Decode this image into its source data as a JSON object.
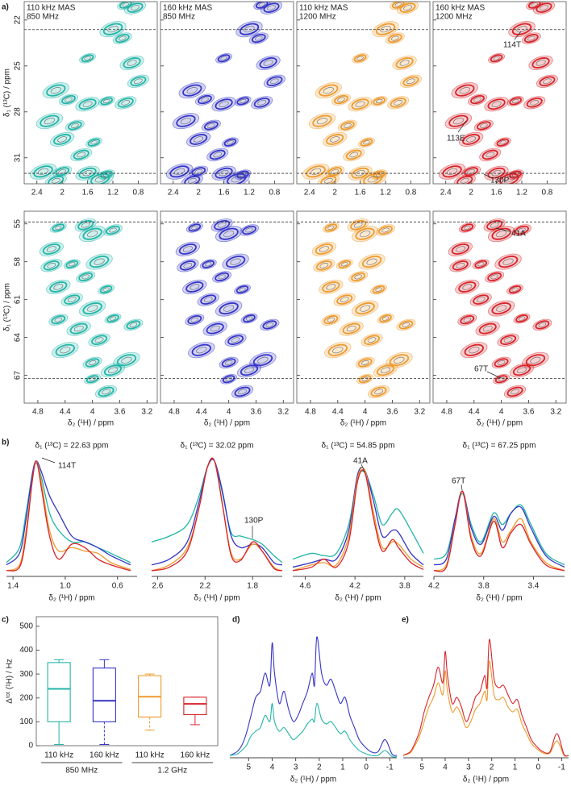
{
  "panel_labels": [
    "a)",
    "b)",
    "c)",
    "d)",
    "e)"
  ],
  "chart_data": [
    {
      "type": "contour",
      "panels": [
        {
          "label": [
            "110 kHz MAS",
            "850 MHz"
          ],
          "color": "#22b5a8"
        },
        {
          "label": [
            "160 kHz MAS",
            "850 MHz"
          ],
          "color": "#3535c8"
        },
        {
          "label": [
            "110 kHz MAS",
            "1200 MHz"
          ],
          "color": "#ee9a2e"
        },
        {
          "label": [
            "160 kHz MAS",
            "1200 MHz"
          ],
          "color": "#d8232a"
        }
      ],
      "xlim": [
        2.6,
        0.5
      ],
      "xticks": [
        2.4,
        2,
        1.6,
        1.2,
        0.8
      ],
      "ylim": [
        20.8,
        32.7
      ],
      "yticks": [
        22,
        25,
        28,
        31
      ],
      "ylabel": "δ₁ (¹³C) / ppm",
      "hlines": [
        22.63,
        32.02
      ],
      "peaks": {
        "x": [
          1.0,
          0.85,
          1.2,
          1.05,
          0.9,
          1.6,
          0.8,
          2.1,
          1.9,
          1.6,
          1.3,
          1.0,
          2.2,
          1.8,
          2.0,
          1.5,
          1.7,
          2.3,
          2.0,
          1.6,
          1.3,
          2.1,
          1.4
        ],
        "y": [
          21.0,
          21.2,
          22.6,
          23.2,
          24.8,
          24.5,
          26.0,
          26.6,
          27.2,
          27.5,
          27.3,
          27.4,
          28.6,
          28.9,
          29.8,
          30.0,
          30.8,
          31.9,
          31.9,
          32.0,
          32.1,
          32.5,
          32.4
        ]
      },
      "annotations": [
        "114T",
        "113E",
        "130P"
      ]
    },
    {
      "type": "contour",
      "panels": [
        {
          "color": "#22b5a8"
        },
        {
          "color": "#3535c8"
        },
        {
          "color": "#ee9a2e"
        },
        {
          "color": "#d8232a"
        }
      ],
      "xlim": [
        5.0,
        3.05
      ],
      "xticks": [
        4.8,
        4.4,
        4,
        3.6,
        3.2
      ],
      "ylim": [
        54.0,
        69.2
      ],
      "yticks": [
        55,
        58,
        61,
        64,
        67
      ],
      "ylabel": "δ₁ (¹³C) / ppm",
      "xlabel": "δ₂ (¹H) / ppm",
      "hlines": [
        54.85,
        67.25
      ],
      "peaks": {
        "x": [
          4.5,
          4.1,
          4.0,
          3.7,
          4.6,
          4.3,
          4.6,
          3.9,
          4.1,
          4.5,
          3.8,
          4.3,
          4.0,
          4.5,
          4.2,
          3.7,
          3.9,
          4.4,
          4.0,
          3.7,
          4.0,
          3.8,
          3.5,
          3.4
        ],
        "y": [
          55.3,
          55.1,
          55.8,
          55.5,
          57.0,
          58.2,
          58.3,
          58.0,
          59.2,
          60.0,
          60.2,
          61.0,
          61.7,
          62.6,
          63.3,
          62.5,
          64.2,
          65.0,
          66.0,
          66.6,
          67.3,
          68.3,
          65.8,
          63.0
        ]
      },
      "annotations": [
        "41A",
        "67T"
      ]
    },
    {
      "type": "spectra",
      "xlabel": "δ₂ (¹H) / ppm",
      "ylim": [
        0,
        1.05
      ],
      "panels": [
        {
          "title": "δ₁ (¹³C) = 22.63 ppm",
          "annotation": "114T",
          "xlim": [
            1.45,
            0.45
          ],
          "xticks": [
            1.4,
            {
              "value": 1,
              "label": "1.0"
            },
            0.6
          ],
          "x": [
            1.45,
            1.35,
            1.3,
            1.25,
            1.22,
            1.18,
            1.12,
            1.05,
            0.95,
            0.85,
            0.75,
            0.65,
            0.5
          ],
          "series": [
            {
              "color": "#22b5a8",
              "values": [
                0.12,
                0.25,
                0.55,
                0.9,
                0.98,
                0.85,
                0.55,
                0.4,
                0.3,
                0.3,
                0.25,
                0.2,
                0.12
              ]
            },
            {
              "color": "#3535c8",
              "values": [
                0.1,
                0.2,
                0.5,
                0.9,
                1.0,
                0.9,
                0.7,
                0.55,
                0.35,
                0.3,
                0.25,
                0.18,
                0.1
              ]
            },
            {
              "color": "#ee9a2e",
              "values": [
                0.05,
                0.1,
                0.4,
                0.85,
                1.0,
                0.8,
                0.4,
                0.22,
                0.25,
                0.22,
                0.2,
                0.12,
                0.06
              ]
            },
            {
              "color": "#d8232a",
              "values": [
                0.05,
                0.08,
                0.35,
                0.85,
                1.0,
                0.75,
                0.35,
                0.15,
                0.28,
                0.25,
                0.15,
                0.1,
                0.05
              ]
            }
          ]
        },
        {
          "title": "δ₁ (¹³C) = 32.02 ppm",
          "annotation": "130P",
          "xlim": [
            2.65,
            1.55
          ],
          "xticks": [
            2.6,
            2.2,
            1.8
          ],
          "x": [
            2.65,
            2.5,
            2.35,
            2.25,
            2.18,
            2.12,
            2.05,
            1.98,
            1.9,
            1.8,
            1.72,
            1.62,
            1.55
          ],
          "series": [
            {
              "color": "#22b5a8",
              "values": [
                0.3,
                0.35,
                0.45,
                0.7,
                0.95,
                1.0,
                0.7,
                0.38,
                0.35,
                0.32,
                0.28,
                0.18,
                0.12
              ]
            },
            {
              "color": "#3535c8",
              "values": [
                0.1,
                0.15,
                0.3,
                0.65,
                0.95,
                1.0,
                0.72,
                0.35,
                0.25,
                0.28,
                0.25,
                0.12,
                0.1
              ]
            },
            {
              "color": "#ee9a2e",
              "values": [
                0.05,
                0.1,
                0.25,
                0.6,
                0.95,
                1.0,
                0.6,
                0.2,
                0.15,
                0.28,
                0.22,
                0.08,
                0.05
              ]
            },
            {
              "color": "#d8232a",
              "values": [
                0.05,
                0.08,
                0.22,
                0.6,
                0.95,
                1.0,
                0.6,
                0.18,
                0.14,
                0.3,
                0.22,
                0.07,
                0.05
              ]
            }
          ]
        },
        {
          "title": "δ₁ (¹³C) = 54.85 ppm",
          "annotation": "41A",
          "xlim": [
            4.7,
            3.65
          ],
          "xticks": [
            4.6,
            4.2,
            3.8
          ],
          "x": [
            4.7,
            4.55,
            4.45,
            4.35,
            4.25,
            4.18,
            4.12,
            4.05,
            3.98,
            3.9,
            3.85,
            3.75,
            3.65
          ],
          "series": [
            {
              "color": "#22b5a8",
              "values": [
                0.15,
                0.2,
                0.18,
                0.2,
                0.45,
                0.85,
                0.9,
                0.7,
                0.45,
                0.55,
                0.58,
                0.4,
                0.2
              ]
            },
            {
              "color": "#3535c8",
              "values": [
                0.08,
                0.12,
                0.15,
                0.15,
                0.4,
                0.88,
                0.92,
                0.65,
                0.35,
                0.4,
                0.38,
                0.2,
                0.1
              ]
            },
            {
              "color": "#ee9a2e",
              "values": [
                0.05,
                0.1,
                0.12,
                0.1,
                0.35,
                0.85,
                0.92,
                0.55,
                0.25,
                0.3,
                0.28,
                0.15,
                0.08
              ]
            },
            {
              "color": "#d8232a",
              "values": [
                0.05,
                0.08,
                0.15,
                0.08,
                0.3,
                0.82,
                0.9,
                0.5,
                0.22,
                0.32,
                0.25,
                0.12,
                0.06
              ]
            }
          ]
        },
        {
          "title": "δ₁ (¹³C) = 67.25 ppm",
          "annotation": "67T",
          "xlim": [
            4.2,
            3.15
          ],
          "xticks": [
            4.2,
            3.8,
            3.4
          ],
          "x": [
            4.2,
            4.1,
            4.03,
            3.97,
            3.9,
            3.82,
            3.72,
            3.65,
            3.58,
            3.5,
            3.42,
            3.3,
            3.15
          ],
          "series": [
            {
              "color": "#22b5a8",
              "values": [
                0.15,
                0.2,
                0.5,
                0.72,
                0.45,
                0.3,
                0.55,
                0.45,
                0.55,
                0.62,
                0.45,
                0.2,
                0.1
              ]
            },
            {
              "color": "#3535c8",
              "values": [
                0.1,
                0.15,
                0.5,
                0.74,
                0.42,
                0.28,
                0.52,
                0.4,
                0.55,
                0.6,
                0.42,
                0.18,
                0.08
              ]
            },
            {
              "color": "#ee9a2e",
              "values": [
                0.05,
                0.1,
                0.45,
                0.74,
                0.35,
                0.2,
                0.5,
                0.3,
                0.4,
                0.5,
                0.3,
                0.12,
                0.05
              ]
            },
            {
              "color": "#d8232a",
              "values": [
                0.05,
                0.08,
                0.45,
                0.74,
                0.32,
                0.18,
                0.48,
                0.25,
                0.38,
                0.45,
                0.28,
                0.1,
                0.05
              ]
            }
          ]
        }
      ]
    },
    {
      "type": "box",
      "ylabel": "Δᵗᵒᵗ (¹H) / Hz",
      "ylim": [
        0,
        540
      ],
      "yticks": [
        0,
        100,
        200,
        300,
        400,
        500
      ],
      "categories": [
        "110 kHz",
        "160 kHz",
        "110 kHz",
        "160 kHz"
      ],
      "groups": [
        "850 MHz",
        "1.2 GHz"
      ],
      "boxes": [
        {
          "color": "#22b5a8",
          "min": 5,
          "q1": 100,
          "median": 238,
          "q3": 348,
          "max": 360
        },
        {
          "color": "#3535c8",
          "min": 5,
          "q1": 100,
          "median": 188,
          "q3": 325,
          "max": 360
        },
        {
          "color": "#ee9a2e",
          "min": 65,
          "q1": 120,
          "median": 205,
          "q3": 293,
          "max": 300
        },
        {
          "color": "#d8232a",
          "min": 88,
          "q1": 130,
          "median": 175,
          "q3": 203,
          "max": 203
        }
      ]
    },
    {
      "type": "line",
      "xlabel": "δ₂ (¹H) / ppm",
      "xlim": [
        5.8,
        -1.3
      ],
      "xticks": [
        5,
        4,
        3,
        2,
        1,
        0,
        -1
      ],
      "ylim": [
        0,
        1.1
      ],
      "x": [
        5.8,
        5.5,
        5.3,
        5.1,
        4.9,
        4.7,
        4.5,
        4.3,
        4.1,
        4.0,
        3.9,
        3.7,
        3.5,
        3.3,
        3.1,
        2.9,
        2.7,
        2.5,
        2.3,
        2.2,
        2.1,
        1.9,
        1.7,
        1.5,
        1.3,
        1.1,
        0.9,
        0.7,
        0.5,
        0.3,
        0.1,
        -0.2,
        -0.5,
        -0.8,
        -1.1,
        -1.3
      ],
      "series": [
        {
          "color": "#3535c8",
          "values": [
            0.02,
            0.05,
            0.1,
            0.2,
            0.35,
            0.5,
            0.55,
            0.7,
            0.6,
            0.95,
            0.7,
            0.45,
            0.55,
            0.4,
            0.3,
            0.35,
            0.45,
            0.55,
            0.7,
            0.6,
            1.0,
            0.7,
            0.6,
            0.65,
            0.55,
            0.45,
            0.5,
            0.35,
            0.25,
            0.15,
            0.1,
            0.05,
            0.05,
            0.15,
            0.03,
            0.02
          ]
        },
        {
          "color": "#22b5a8",
          "values": [
            0.02,
            0.03,
            0.06,
            0.1,
            0.18,
            0.22,
            0.25,
            0.35,
            0.3,
            0.45,
            0.3,
            0.22,
            0.25,
            0.2,
            0.15,
            0.18,
            0.22,
            0.28,
            0.32,
            0.3,
            0.45,
            0.32,
            0.28,
            0.3,
            0.25,
            0.2,
            0.22,
            0.15,
            0.1,
            0.06,
            0.04,
            0.02,
            0.02,
            0.06,
            0.01,
            0.01
          ]
        }
      ]
    },
    {
      "type": "line",
      "xlabel": "δ₂ (¹H) / ppm",
      "xlim": [
        5.8,
        -1.3
      ],
      "xticks": [
        5,
        4,
        3,
        2,
        1,
        0,
        -1
      ],
      "ylim": [
        0,
        1.1
      ],
      "x": [
        5.8,
        5.5,
        5.3,
        5.1,
        4.9,
        4.7,
        4.5,
        4.3,
        4.1,
        4.0,
        3.9,
        3.7,
        3.5,
        3.3,
        3.1,
        2.9,
        2.7,
        2.5,
        2.3,
        2.2,
        2.1,
        1.9,
        1.7,
        1.5,
        1.3,
        1.1,
        0.9,
        0.7,
        0.5,
        0.3,
        0.1,
        -0.2,
        -0.5,
        -0.8,
        -1.1,
        -1.3
      ],
      "series": [
        {
          "color": "#ee9a2e",
          "values": [
            0.02,
            0.04,
            0.1,
            0.18,
            0.3,
            0.42,
            0.5,
            0.62,
            0.52,
            0.72,
            0.55,
            0.38,
            0.42,
            0.35,
            0.25,
            0.3,
            0.4,
            0.45,
            0.55,
            0.48,
            0.8,
            0.52,
            0.48,
            0.5,
            0.42,
            0.38,
            0.4,
            0.28,
            0.2,
            0.12,
            0.08,
            0.04,
            0.04,
            0.14,
            0.02,
            0.02
          ]
        },
        {
          "color": "#d8232a",
          "values": [
            0.02,
            0.05,
            0.12,
            0.22,
            0.38,
            0.5,
            0.6,
            0.75,
            0.62,
            0.88,
            0.68,
            0.45,
            0.5,
            0.42,
            0.3,
            0.38,
            0.5,
            0.55,
            0.68,
            0.58,
            0.98,
            0.65,
            0.58,
            0.6,
            0.52,
            0.45,
            0.48,
            0.35,
            0.25,
            0.15,
            0.1,
            0.05,
            0.05,
            0.2,
            0.03,
            0.02
          ]
        }
      ]
    }
  ]
}
